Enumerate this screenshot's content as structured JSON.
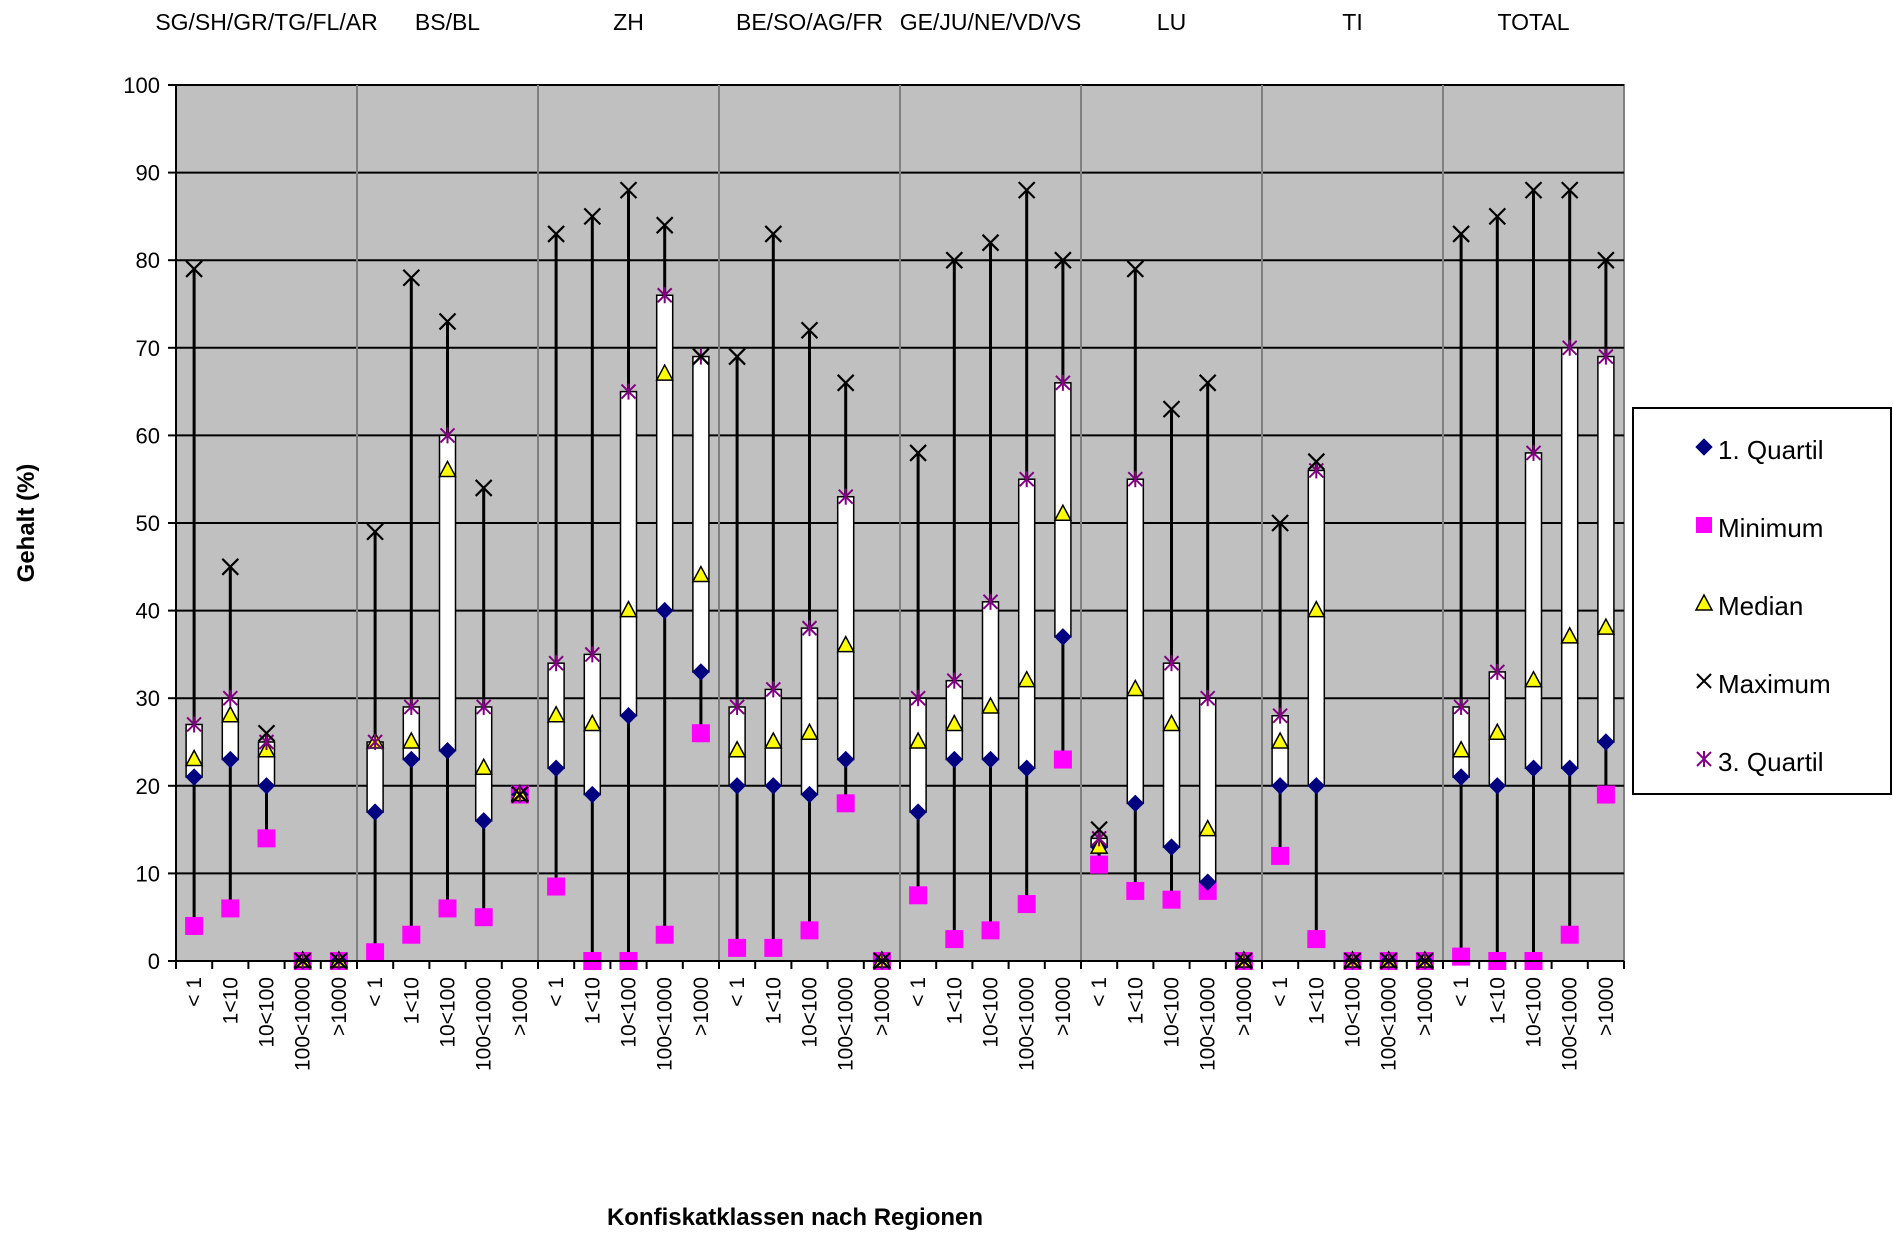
{
  "chart_data": {
    "type": "boxplot",
    "title": "",
    "xlabel": "Konfiskatklassen nach Regionen",
    "ylabel": "Gehalt (%)",
    "ylim": [
      0,
      100
    ],
    "yticks": [
      0,
      10,
      20,
      30,
      40,
      50,
      60,
      70,
      80,
      90,
      100
    ],
    "grid": true,
    "legend_position": "right",
    "regions": [
      "SG/SH/GR/TG/FL/AR",
      "BS/BL",
      "ZH",
      "BE/SO/AG/FR",
      "GE/JU/NE/VD/VS",
      "LU",
      "TI",
      "TOTAL"
    ],
    "classes": [
      "< 1",
      "1<10",
      "10<100",
      "100<1000",
      ">1000"
    ],
    "series_names": {
      "q1": "1. Quartil",
      "min": "Minimum",
      "median": "Median",
      "max": "Maximum",
      "q3": "3. Quartil"
    },
    "colors": {
      "plot_bg": "#c0c0c0",
      "q1": "#000080",
      "min": "#ff00ff",
      "median": "#ffff00",
      "max": "#000000",
      "q3": "#800080",
      "box": "#ffffff"
    },
    "data": [
      [
        {
          "min": 4,
          "q1": 21,
          "median": 23,
          "q3": 27,
          "max": 79
        },
        {
          "min": 6,
          "q1": 23,
          "median": 28,
          "q3": 30,
          "max": 45
        },
        {
          "min": 14,
          "q1": 20,
          "median": 24,
          "q3": 25,
          "max": 26
        },
        {
          "min": 0,
          "q1": 0,
          "median": 0,
          "q3": 0,
          "max": 0
        },
        {
          "min": 0,
          "q1": 0,
          "median": 0,
          "q3": 0,
          "max": 0
        }
      ],
      [
        {
          "min": 1,
          "q1": 17,
          "median": 25,
          "q3": 25,
          "max": 49
        },
        {
          "min": 3,
          "q1": 23,
          "median": 25,
          "q3": 29,
          "max": 78
        },
        {
          "min": 6,
          "q1": 24,
          "median": 56,
          "q3": 60,
          "max": 73
        },
        {
          "min": 5,
          "q1": 16,
          "median": 22,
          "q3": 29,
          "max": 54
        },
        {
          "min": 19,
          "q1": 19,
          "median": 19,
          "q3": 19,
          "max": 19
        }
      ],
      [
        {
          "min": 8.5,
          "q1": 22,
          "median": 28,
          "q3": 34,
          "max": 83
        },
        {
          "min": 0,
          "q1": 19,
          "median": 27,
          "q3": 35,
          "max": 85
        },
        {
          "min": 0,
          "q1": 28,
          "median": 40,
          "q3": 65,
          "max": 88
        },
        {
          "min": 3,
          "q1": 40,
          "median": 67,
          "q3": 76,
          "max": 84
        },
        {
          "min": 26,
          "q1": 33,
          "median": 44,
          "q3": 69,
          "max": 69
        }
      ],
      [
        {
          "min": 1.5,
          "q1": 20,
          "median": 24,
          "q3": 29,
          "max": 69
        },
        {
          "min": 1.5,
          "q1": 20,
          "median": 25,
          "q3": 31,
          "max": 83
        },
        {
          "min": 3.5,
          "q1": 19,
          "median": 26,
          "q3": 38,
          "max": 72
        },
        {
          "min": 18,
          "q1": 23,
          "median": 36,
          "q3": 53,
          "max": 66
        },
        {
          "min": 0,
          "q1": 0,
          "median": 0,
          "q3": 0,
          "max": 0
        }
      ],
      [
        {
          "min": 7.5,
          "q1": 17,
          "median": 25,
          "q3": 30,
          "max": 58
        },
        {
          "min": 2.5,
          "q1": 23,
          "median": 27,
          "q3": 32,
          "max": 80
        },
        {
          "min": 3.5,
          "q1": 23,
          "median": 29,
          "q3": 41,
          "max": 82
        },
        {
          "min": 6.5,
          "q1": 22,
          "median": 32,
          "q3": 55,
          "max": 88
        },
        {
          "min": 23,
          "q1": 37,
          "median": 51,
          "q3": 66,
          "max": 80
        }
      ],
      [
        {
          "min": 11,
          "q1": 13,
          "median": 13,
          "q3": 14,
          "max": 15
        },
        {
          "min": 8,
          "q1": 18,
          "median": 31,
          "q3": 55,
          "max": 79
        },
        {
          "min": 7,
          "q1": 13,
          "median": 27,
          "q3": 34,
          "max": 63
        },
        {
          "min": 8,
          "q1": 9,
          "median": 15,
          "q3": 30,
          "max": 66
        },
        {
          "min": 0,
          "q1": 0,
          "median": 0,
          "q3": 0,
          "max": 0
        }
      ],
      [
        {
          "min": 12,
          "q1": 20,
          "median": 25,
          "q3": 28,
          "max": 50
        },
        {
          "min": 2.5,
          "q1": 20,
          "median": 40,
          "q3": 56,
          "max": 57
        },
        {
          "min": 0,
          "q1": 0,
          "median": 0,
          "q3": 0,
          "max": 0
        },
        {
          "min": 0,
          "q1": 0,
          "median": 0,
          "q3": 0,
          "max": 0
        },
        {
          "min": 0,
          "q1": 0,
          "median": 0,
          "q3": 0,
          "max": 0
        }
      ],
      [
        {
          "min": 0.5,
          "q1": 21,
          "median": 24,
          "q3": 29,
          "max": 83
        },
        {
          "min": 0,
          "q1": 20,
          "median": 26,
          "q3": 33,
          "max": 85
        },
        {
          "min": 0,
          "q1": 22,
          "median": 32,
          "q3": 58,
          "max": 88
        },
        {
          "min": 3,
          "q1": 22,
          "median": 37,
          "q3": 70,
          "max": 88
        },
        {
          "min": 19,
          "q1": 25,
          "median": 38,
          "q3": 69,
          "max": 80
        }
      ]
    ]
  }
}
